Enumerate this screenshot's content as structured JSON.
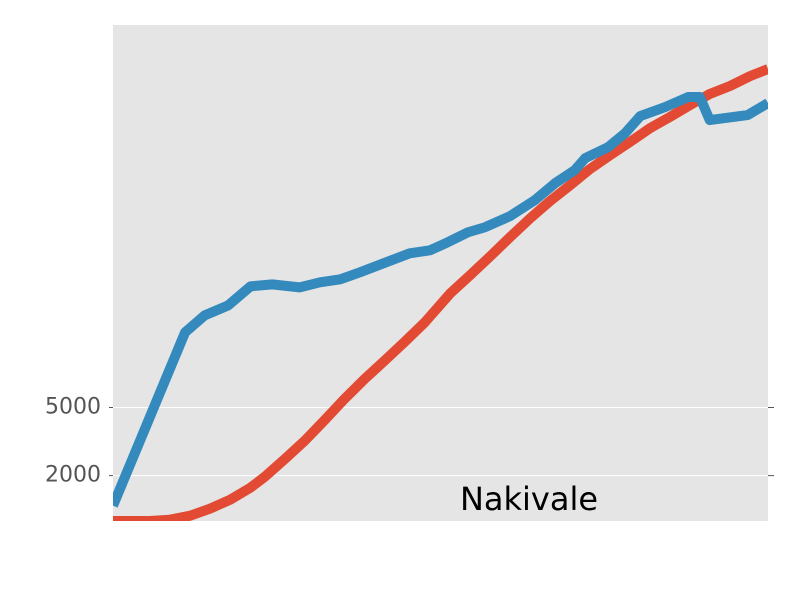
{
  "chart_data": {
    "type": "line",
    "annotation": "Nakivale",
    "xlim": [
      0,
      100
    ],
    "ylim": [
      0,
      21850
    ],
    "yticks": [
      2000,
      5000
    ],
    "grid": true,
    "series": [
      {
        "color": "#e24a33",
        "x": [
          0,
          5.6,
          8.7,
          11.8,
          14.8,
          17.9,
          21,
          23.2,
          26.3,
          29.3,
          32.4,
          35.4,
          38.5,
          41.5,
          44.6,
          47.6,
          51.5,
          54.5,
          57.6,
          60.6,
          63.7,
          66.7,
          69.8,
          72.8,
          75.9,
          78.9,
          82,
          85,
          88.1,
          91.1,
          94.2,
          97.3,
          100
        ],
        "values": [
          0,
          0,
          57,
          234,
          543,
          940,
          1470,
          1955,
          2749,
          3543,
          4470,
          5396,
          6279,
          7073,
          7911,
          8750,
          10029,
          10823,
          11662,
          12500,
          13338,
          14088,
          14794,
          15500,
          16118,
          16691,
          17309,
          17795,
          18324,
          18809,
          19162,
          19603,
          19912
        ]
      },
      {
        "color": "#348abd",
        "x": [
          0,
          11,
          14,
          17.6,
          21,
          24.3,
          28.5,
          31.6,
          34.7,
          37.7,
          40.5,
          45.3,
          48.4,
          51.1,
          54.2,
          56.8,
          60.6,
          64.4,
          67.5,
          70.5,
          72.1,
          75.6,
          78.2,
          80.5,
          84.3,
          87.8,
          89.6,
          91.1,
          96.9,
          100
        ],
        "values": [
          675,
          8308,
          9058,
          9500,
          10337,
          10425,
          10293,
          10514,
          10646,
          10955,
          11264,
          11794,
          11926,
          12279,
          12720,
          12941,
          13426,
          14132,
          14882,
          15456,
          15985,
          16471,
          17089,
          17839,
          18236,
          18677,
          18677,
          17662,
          17883,
          18412
        ]
      }
    ]
  }
}
